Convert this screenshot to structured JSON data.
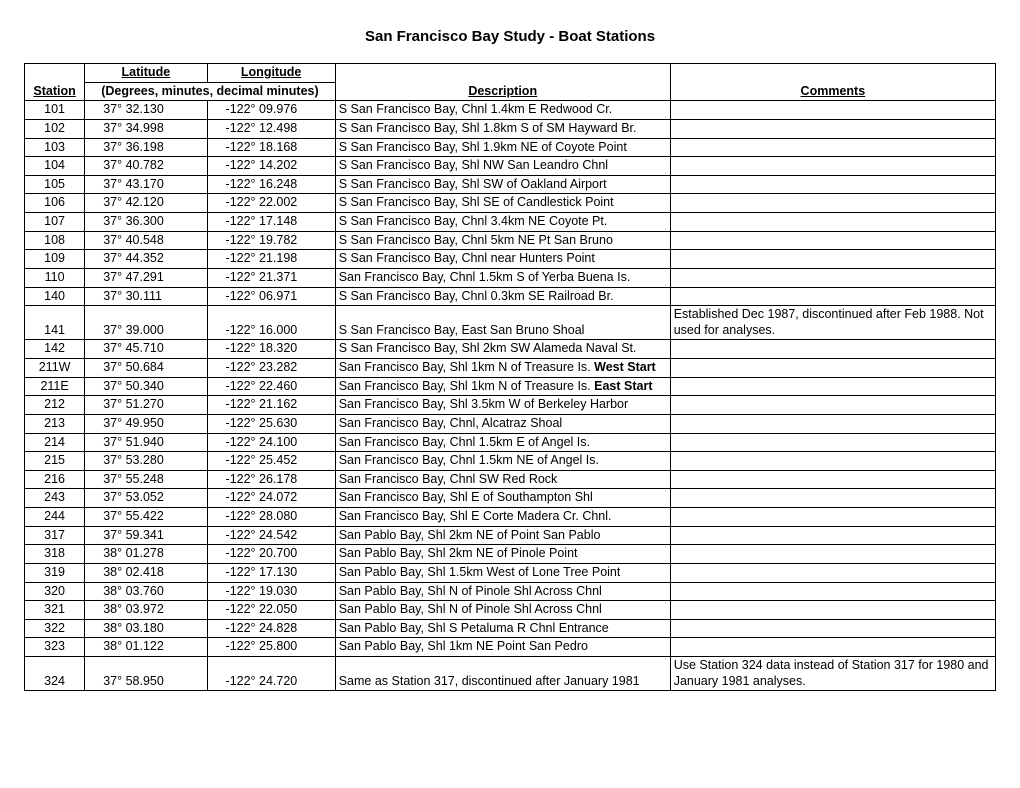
{
  "title": "San Francisco Bay Study - Boat Stations",
  "headers": {
    "station": "Station",
    "latitude": "Latitude",
    "longitude": "Longitude",
    "coord_sub": "(Degrees, minutes, decimal minutes)",
    "description": "Description",
    "comments": "Comments"
  },
  "rows": [
    {
      "station": "101",
      "lat": "37° 32.130",
      "lon": "-122° 09.976",
      "desc": "S San Francisco Bay, Chnl 1.4km E Redwood Cr.",
      "comm": ""
    },
    {
      "station": "102",
      "lat": "37° 34.998",
      "lon": "-122° 12.498",
      "desc": "S San Francisco Bay, Shl 1.8km S of SM Hayward Br.",
      "comm": ""
    },
    {
      "station": "103",
      "lat": "37° 36.198",
      "lon": "-122° 18.168",
      "desc": "S San Francisco Bay, Shl 1.9km NE of Coyote Point",
      "comm": ""
    },
    {
      "station": "104",
      "lat": "37° 40.782",
      "lon": "-122° 14.202",
      "desc": "S San Francisco Bay, Shl NW San Leandro Chnl",
      "comm": ""
    },
    {
      "station": "105",
      "lat": "37° 43.170",
      "lon": "-122° 16.248",
      "desc": "S San Francisco Bay, Shl SW of Oakland Airport",
      "comm": ""
    },
    {
      "station": "106",
      "lat": "37° 42.120",
      "lon": "-122° 22.002",
      "desc": "S San Francisco Bay, Shl SE of Candlestick Point",
      "comm": ""
    },
    {
      "station": "107",
      "lat": "37° 36.300",
      "lon": "-122° 17.148",
      "desc": "S San Francisco Bay, Chnl 3.4km NE Coyote Pt.",
      "comm": ""
    },
    {
      "station": "108",
      "lat": "37° 40.548",
      "lon": "-122° 19.782",
      "desc": "S San Francisco Bay, Chnl 5km NE Pt San Bruno",
      "comm": ""
    },
    {
      "station": "109",
      "lat": "37° 44.352",
      "lon": "-122° 21.198",
      "desc": "S San Francisco Bay, Chnl near Hunters Point",
      "comm": ""
    },
    {
      "station": "110",
      "lat": "37° 47.291",
      "lon": "-122° 21.371",
      "desc": "San Francisco Bay, Chnl 1.5km S of Yerba Buena Is.",
      "comm": ""
    },
    {
      "station": "140",
      "lat": "37° 30.111",
      "lon": "-122° 06.971",
      "desc": "S San Francisco Bay, Chnl 0.3km SE Railroad Br.",
      "comm": ""
    },
    {
      "station": "141",
      "lat": "37° 39.000",
      "lon": "-122° 16.000",
      "desc": "S San Francisco Bay, East San Bruno Shoal",
      "comm": "Established Dec 1987, discontinued after Feb 1988. Not used for analyses."
    },
    {
      "station": "142",
      "lat": "37° 45.710",
      "lon": "-122° 18.320",
      "desc": "S San Francisco Bay, Shl 2km SW Alameda Naval St.",
      "comm": ""
    },
    {
      "station": "211W",
      "lat": "37° 50.684",
      "lon": "-122° 23.282",
      "desc": "San Francisco Bay, Shl 1km N of Treasure Is. ",
      "desc_bold": "West Start",
      "comm": ""
    },
    {
      "station": "211E",
      "lat": "37° 50.340",
      "lon": "-122° 22.460",
      "desc": "San Francisco Bay, Shl 1km N of Treasure Is.  ",
      "desc_bold": "East Start",
      "comm": ""
    },
    {
      "station": "212",
      "lat": "37° 51.270",
      "lon": "-122° 21.162",
      "desc": "San Francisco Bay, Shl 3.5km W of Berkeley Harbor",
      "comm": ""
    },
    {
      "station": "213",
      "lat": "37° 49.950",
      "lon": "-122° 25.630",
      "desc": "San Francisco Bay, Chnl, Alcatraz Shoal",
      "comm": ""
    },
    {
      "station": "214",
      "lat": "37° 51.940",
      "lon": "-122° 24.100",
      "desc": "San Francisco Bay, Chnl 1.5km E of Angel Is.",
      "comm": ""
    },
    {
      "station": "215",
      "lat": "37° 53.280",
      "lon": "-122° 25.452",
      "desc": "San Francisco Bay, Chnl 1.5km NE of Angel Is.",
      "comm": ""
    },
    {
      "station": "216",
      "lat": "37° 55.248",
      "lon": "-122° 26.178",
      "desc": "San Francisco Bay, Chnl SW Red Rock",
      "comm": ""
    },
    {
      "station": "243",
      "lat": "37° 53.052",
      "lon": "-122° 24.072",
      "desc": "San Francisco Bay, Shl E of Southampton Shl",
      "comm": ""
    },
    {
      "station": "244",
      "lat": "37° 55.422",
      "lon": "-122° 28.080",
      "desc": "San Francisco Bay, Shl E Corte Madera Cr. Chnl.",
      "comm": ""
    },
    {
      "station": "317",
      "lat": "37° 59.341",
      "lon": "-122° 24.542",
      "desc": "San Pablo Bay, Shl 2km NE of Point San Pablo",
      "comm": ""
    },
    {
      "station": "318",
      "lat": "38° 01.278",
      "lon": "-122° 20.700",
      "desc": "San Pablo Bay, Shl 2km NE of Pinole Point",
      "comm": ""
    },
    {
      "station": "319",
      "lat": "38° 02.418",
      "lon": "-122° 17.130",
      "desc": "San Pablo Bay, Shl 1.5km West of Lone Tree Point",
      "comm": ""
    },
    {
      "station": "320",
      "lat": "38° 03.760",
      "lon": "-122° 19.030",
      "desc": "San Pablo Bay, Shl N of Pinole Shl Across Chnl",
      "comm": ""
    },
    {
      "station": "321",
      "lat": "38° 03.972",
      "lon": "-122° 22.050",
      "desc": "San Pablo Bay, Shl N of Pinole Shl Across Chnl",
      "comm": ""
    },
    {
      "station": "322",
      "lat": "38° 03.180",
      "lon": "-122° 24.828",
      "desc": "San Pablo Bay, Shl S Petaluma R Chnl Entrance",
      "comm": ""
    },
    {
      "station": "323",
      "lat": "38° 01.122",
      "lon": "-122° 25.800",
      "desc": "San Pablo Bay, Shl 1km NE Point San Pedro",
      "comm": ""
    },
    {
      "station": "324",
      "lat": "37° 58.950",
      "lon": "-122° 24.720",
      "desc": "Same as Station 317, discontinued after January 1981",
      "comm": "Use Station 324 data instead of Station 317 for 1980 and January 1981 analyses."
    }
  ]
}
